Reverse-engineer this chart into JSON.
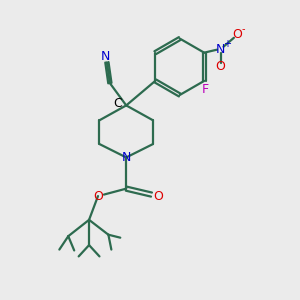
{
  "bg_color": "#ebebeb",
  "bond_color": "#2d6b4f",
  "N_color": "#0000cc",
  "O_color": "#dd0000",
  "F_color": "#bb00bb",
  "bond_width": 1.6,
  "figsize": [
    3.0,
    3.0
  ],
  "dpi": 100,
  "xlim": [
    0,
    10
  ],
  "ylim": [
    0,
    10
  ]
}
